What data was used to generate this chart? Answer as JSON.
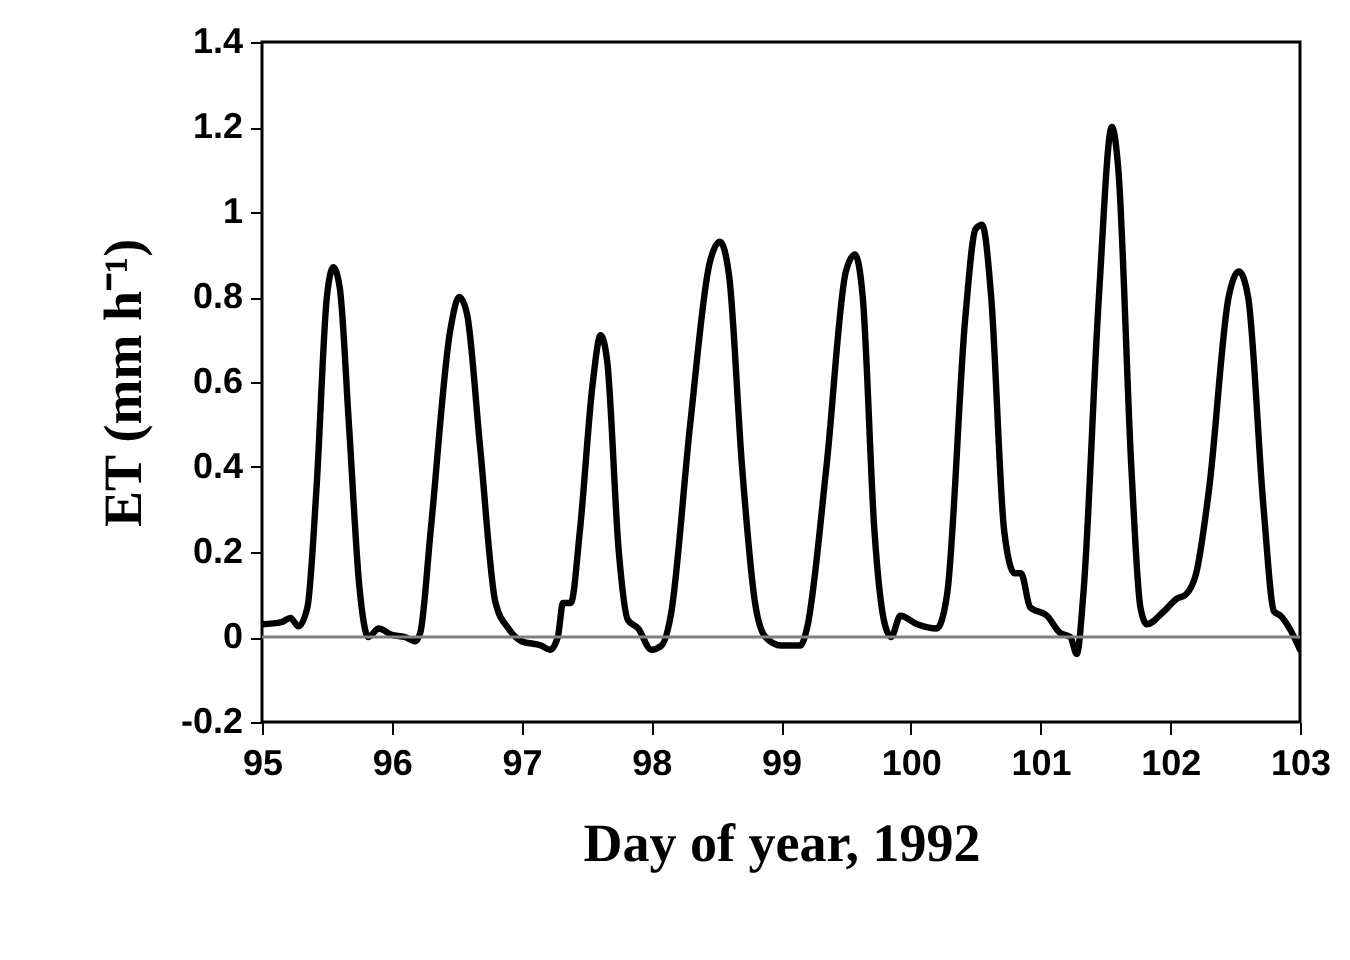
{
  "chart_data": {
    "type": "line",
    "xlabel": "Day of year, 1992",
    "ylabel": "ET (mm h⁻¹)",
    "xlim": [
      95,
      103
    ],
    "xticks": [
      95,
      96,
      97,
      98,
      99,
      100,
      101,
      102,
      103
    ],
    "ylim": [
      -0.2,
      1.4
    ],
    "yticks": [
      -0.2,
      0,
      0.2,
      0.4,
      0.6,
      0.8,
      1,
      1.2,
      1.4
    ],
    "grid": false,
    "marker": "none",
    "line_style": "solid",
    "ref_lines": [
      {
        "axis": "y",
        "value": 0,
        "color": "#808080"
      }
    ],
    "series": [
      {
        "color": "#000000",
        "x": [
          95,
          95.15,
          95.22,
          95.28,
          95.35,
          95.42,
          95.5,
          95.55,
          95.6,
          95.67,
          95.75,
          95.82,
          95.9,
          96.0,
          96.1,
          96.18,
          96.22,
          96.3,
          96.45,
          96.52,
          96.58,
          96.68,
          96.8,
          96.9,
          97.0,
          97.15,
          97.22,
          97.28,
          97.32,
          97.38,
          97.45,
          97.55,
          97.61,
          97.66,
          97.75,
          97.82,
          97.9,
          98.0,
          98.08,
          98.15,
          98.3,
          98.45,
          98.53,
          98.6,
          98.7,
          98.8,
          98.88,
          99.0,
          99.15,
          99.2,
          99.35,
          99.5,
          99.57,
          99.63,
          99.72,
          99.8,
          99.85,
          99.92,
          100.05,
          100.2,
          100.28,
          100.42,
          100.5,
          100.55,
          100.62,
          100.72,
          100.8,
          100.85,
          100.92,
          101.05,
          101.15,
          101.23,
          101.28,
          101.33,
          101.45,
          101.55,
          101.6,
          101.7,
          101.77,
          101.82,
          101.95,
          102.05,
          102.12,
          102.2,
          102.3,
          102.45,
          102.53,
          102.6,
          102.72,
          102.8,
          102.85,
          102.92,
          103.0
        ],
        "values": [
          0.03,
          0.035,
          0.045,
          0.025,
          0.07,
          0.35,
          0.8,
          0.87,
          0.82,
          0.5,
          0.12,
          0.0,
          0.02,
          0.005,
          0.0,
          -0.01,
          0.01,
          0.25,
          0.72,
          0.8,
          0.76,
          0.45,
          0.08,
          0.02,
          -0.01,
          -0.02,
          -0.03,
          0.0,
          0.08,
          0.08,
          0.25,
          0.6,
          0.71,
          0.65,
          0.2,
          0.04,
          0.02,
          -0.03,
          -0.02,
          0.05,
          0.5,
          0.88,
          0.93,
          0.85,
          0.4,
          0.08,
          0.0,
          -0.02,
          -0.02,
          0.02,
          0.4,
          0.86,
          0.9,
          0.8,
          0.25,
          0.03,
          0.0,
          0.05,
          0.03,
          0.02,
          0.1,
          0.75,
          0.96,
          0.97,
          0.8,
          0.25,
          0.15,
          0.15,
          0.07,
          0.05,
          0.01,
          0.0,
          -0.04,
          0.1,
          0.8,
          1.2,
          1.1,
          0.4,
          0.07,
          0.03,
          0.06,
          0.09,
          0.1,
          0.15,
          0.35,
          0.8,
          0.86,
          0.8,
          0.3,
          0.06,
          0.05,
          0.02,
          -0.03
        ]
      }
    ]
  }
}
